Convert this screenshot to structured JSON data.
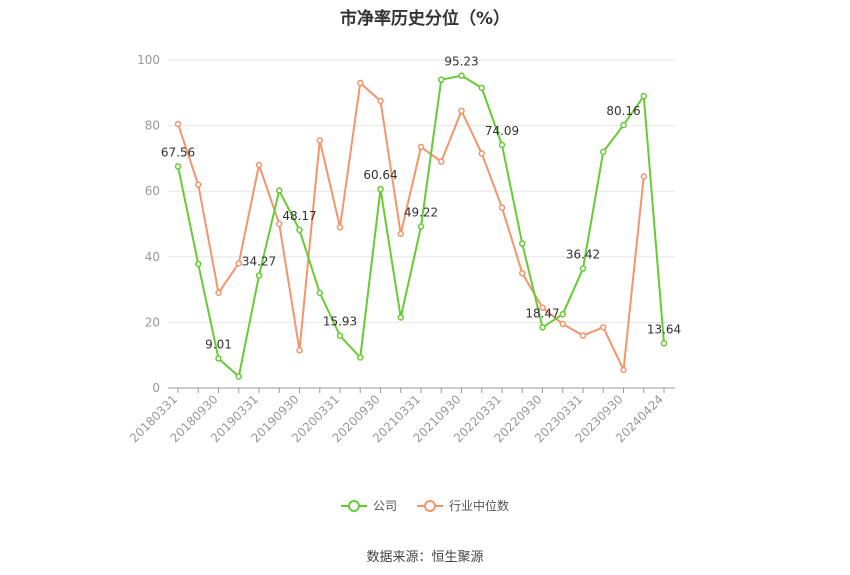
{
  "chart_data": {
    "type": "line",
    "title": "市净率历史分位（%）",
    "ylim": [
      0,
      100
    ],
    "yticks": [
      0,
      20,
      40,
      60,
      80,
      100
    ],
    "grid": true,
    "legend_position": "bottom",
    "x": [
      "20180331",
      "20180630",
      "20180930",
      "20181231",
      "20190331",
      "20190630",
      "20190930",
      "20191231",
      "20200331",
      "20200630",
      "20200930",
      "20201231",
      "20210331",
      "20210630",
      "20210930",
      "20211231",
      "20220331",
      "20220630",
      "20220930",
      "20221231",
      "20230331",
      "20230630",
      "20230930",
      "20231231",
      "20240424"
    ],
    "xtick_labels": [
      "20180331",
      "20180930",
      "20190331",
      "20190930",
      "20200331",
      "20200930",
      "20210331",
      "20210930",
      "20220331",
      "20220930",
      "20230331",
      "20230930",
      "20240424"
    ],
    "series": [
      {
        "name": "公司",
        "color": "#66cc33",
        "values": [
          67.56,
          37.8,
          9.01,
          3.5,
          34.27,
          60.2,
          48.17,
          29.0,
          15.93,
          9.3,
          60.64,
          21.5,
          49.22,
          94.0,
          95.23,
          91.5,
          74.09,
          44.0,
          18.47,
          22.5,
          36.42,
          72.0,
          80.16,
          89.0,
          13.64
        ],
        "labels": {
          "0": "67.56",
          "2": "9.01",
          "4": "34.27",
          "6": "48.17",
          "8": "15.93",
          "10": "60.64",
          "12": "49.22",
          "14": "95.23",
          "16": "74.09",
          "18": "18.47",
          "20": "36.42",
          "22": "80.16",
          "24": "13.64"
        }
      },
      {
        "name": "行业中位数",
        "color": "#f4956c",
        "values": [
          80.5,
          62.0,
          29.0,
          38.0,
          68.0,
          50.0,
          11.5,
          75.5,
          49.0,
          93.0,
          87.5,
          47.0,
          73.5,
          69.0,
          84.5,
          71.5,
          55.0,
          35.0,
          24.5,
          19.5,
          16.0,
          18.5,
          5.5,
          64.5,
          null
        ]
      }
    ]
  },
  "source": "数据来源：恒生聚源"
}
